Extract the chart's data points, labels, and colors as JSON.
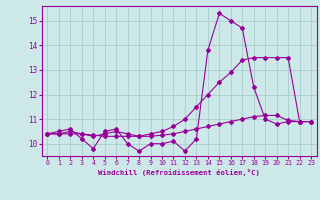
{
  "xlabel": "Windchill (Refroidissement éolien,°C)",
  "background_color": "#cce8e8",
  "grid_color": "#aacccc",
  "line_color": "#990099",
  "xlim": [
    -0.5,
    23.5
  ],
  "ylim": [
    9.5,
    15.6
  ],
  "xticks": [
    0,
    1,
    2,
    3,
    4,
    5,
    6,
    7,
    8,
    9,
    10,
    11,
    12,
    13,
    14,
    15,
    16,
    17,
    18,
    19,
    20,
    21,
    22,
    23
  ],
  "yticks": [
    10,
    11,
    12,
    13,
    14,
    15
  ],
  "line1_x": [
    0,
    1,
    2,
    3,
    4,
    5,
    6,
    7,
    8,
    9,
    10,
    11,
    12,
    13,
    14,
    15,
    16,
    17,
    18,
    19,
    20,
    21,
    22,
    23
  ],
  "line1_y": [
    10.4,
    10.5,
    10.6,
    10.2,
    9.8,
    10.5,
    10.6,
    10.0,
    9.7,
    10.0,
    10.0,
    10.1,
    9.7,
    10.2,
    13.8,
    15.3,
    15.0,
    14.7,
    12.3,
    11.0,
    10.8,
    10.9,
    10.9,
    10.9
  ],
  "line2_x": [
    0,
    1,
    2,
    3,
    4,
    5,
    6,
    7,
    8,
    9,
    10,
    11,
    12,
    13,
    14,
    15,
    16,
    17,
    18,
    19,
    20,
    21,
    22,
    23
  ],
  "line2_y": [
    10.4,
    10.4,
    10.5,
    10.4,
    10.3,
    10.4,
    10.5,
    10.4,
    10.3,
    10.4,
    10.5,
    10.7,
    11.0,
    11.5,
    12.0,
    12.5,
    12.9,
    13.4,
    13.5,
    13.5,
    13.5,
    13.5,
    10.9,
    10.9
  ],
  "line3_x": [
    0,
    1,
    2,
    3,
    4,
    5,
    6,
    7,
    8,
    9,
    10,
    11,
    12,
    13,
    14,
    15,
    16,
    17,
    18,
    19,
    20,
    21,
    22,
    23
  ],
  "line3_y": [
    10.4,
    10.4,
    10.4,
    10.4,
    10.35,
    10.3,
    10.3,
    10.3,
    10.3,
    10.3,
    10.35,
    10.4,
    10.5,
    10.6,
    10.7,
    10.8,
    10.9,
    11.0,
    11.1,
    11.15,
    11.15,
    10.95,
    10.9,
    10.9
  ]
}
